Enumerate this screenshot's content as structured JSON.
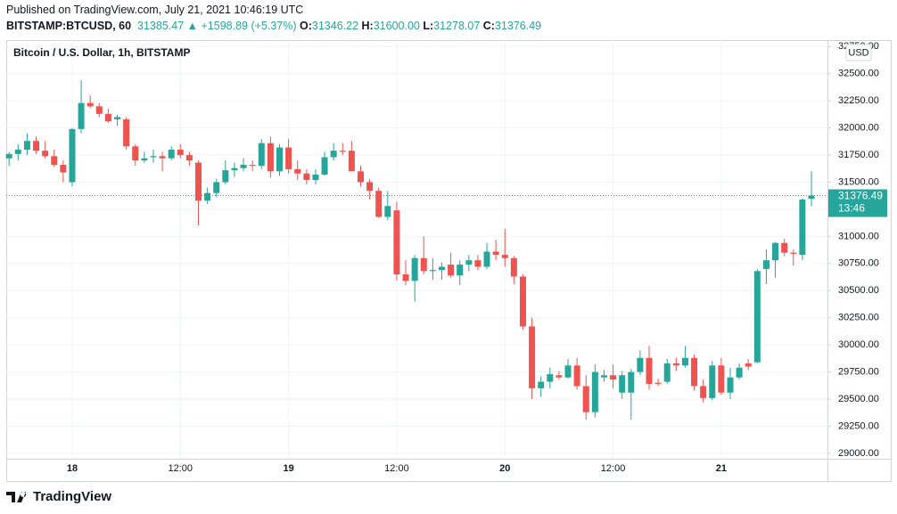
{
  "header": {
    "published": "Published on TradingView.com, July 21, 2021 10:46:19 UTC",
    "symbol": "BITSTAMP:BTCUSD, 60",
    "last": "31385.47",
    "change": "▲ +1598.89 (+5.37%)",
    "o": "O:",
    "o_value": "31346.22",
    "h": "H:",
    "h_value": "31600.00",
    "l": "L:",
    "l_value": "31278.07",
    "c": "C:",
    "c_value": "31376.49"
  },
  "footer": {
    "brand": "TradingView"
  },
  "chart_data": {
    "type": "candlestick",
    "title": "Bitcoin / U.S. Dollar, 1h, BITSTAMP",
    "currency": "USD",
    "countdown": "13:46",
    "up_color": "#26a69a",
    "down_color": "#ef5350",
    "grid": true,
    "categories": [
      null,
      null,
      null,
      null,
      null,
      null,
      null,
      "18",
      null,
      null,
      null,
      null,
      null,
      null,
      null,
      null,
      null,
      null,
      null,
      "12:00",
      null,
      null,
      null,
      null,
      null,
      null,
      null,
      null,
      null,
      null,
      null,
      "19",
      null,
      null,
      null,
      null,
      null,
      null,
      null,
      null,
      null,
      null,
      null,
      "12:00",
      null,
      null,
      null,
      null,
      null,
      null,
      null,
      null,
      null,
      null,
      null,
      "20",
      null,
      null,
      null,
      null,
      null,
      null,
      null,
      null,
      null,
      null,
      null,
      "12:00",
      null,
      null,
      null,
      null,
      null,
      null,
      null,
      null,
      null,
      null,
      null,
      "21",
      null,
      null,
      null,
      null,
      null,
      null,
      null,
      null,
      null,
      null
    ],
    "open": [
      31720,
      31760,
      31800,
      31880,
      31790,
      31740,
      31660,
      31500,
      31990,
      32230,
      32200,
      32130,
      32080,
      32080,
      31830,
      31700,
      31730,
      31740,
      31720,
      31800,
      31750,
      31680,
      31330,
      31400,
      31500,
      31610,
      31630,
      31660,
      31650,
      31860,
      31600,
      31820,
      31620,
      31580,
      31520,
      31570,
      31730,
      31790,
      31790,
      31600,
      31500,
      31420,
      31180,
      31240,
      30650,
      30590,
      30800,
      30680,
      30690,
      30740,
      30640,
      30740,
      30780,
      30720,
      30860,
      30830,
      30800,
      30630,
      30170,
      29600,
      29660,
      29720,
      29700,
      29810,
      29620,
      29380,
      29700,
      29720,
      29560,
      29560,
      29750,
      29880,
      29650,
      29660,
      29830,
      29810,
      29880,
      29620,
      29510,
      29810,
      29560,
      29700,
      29830,
      29840,
      30700,
      30780,
      30940,
      30850,
      30830,
      31346.22
    ],
    "high": [
      31780,
      31850,
      31950,
      31920,
      31880,
      31800,
      31700,
      32000,
      32440,
      32300,
      32230,
      32180,
      32120,
      32100,
      31850,
      31780,
      31800,
      31780,
      31830,
      31850,
      31780,
      31700,
      31450,
      31530,
      31700,
      31680,
      31720,
      31700,
      31900,
      31920,
      31850,
      31900,
      31700,
      31620,
      31620,
      31780,
      31860,
      31860,
      31880,
      31650,
      31530,
      31450,
      31420,
      31320,
      30780,
      30830,
      31000,
      30800,
      30760,
      30850,
      30780,
      30830,
      30830,
      30940,
      30970,
      31070,
      30820,
      30650,
      30250,
      29710,
      29790,
      29760,
      29870,
      29880,
      29720,
      29820,
      29770,
      29820,
      29760,
      29780,
      29950,
      29990,
      29690,
      29870,
      29880,
      29990,
      29910,
      29680,
      29850,
      29880,
      29790,
      29830,
      29870,
      30700,
      30880,
      30950,
      30980,
      30880,
      31350,
      31600
    ],
    "low": [
      31650,
      31700,
      31750,
      31760,
      31720,
      31640,
      31500,
      31460,
      31950,
      32180,
      32100,
      32050,
      32020,
      31800,
      31650,
      31680,
      31680,
      31600,
      31700,
      31720,
      31650,
      31100,
      31300,
      31360,
      31480,
      31550,
      31600,
      31600,
      31620,
      31540,
      31560,
      31580,
      31520,
      31480,
      31480,
      31560,
      31700,
      31750,
      31600,
      31460,
      31340,
      31170,
      31150,
      30590,
      30550,
      30400,
      30650,
      30600,
      30600,
      30620,
      30550,
      30680,
      30690,
      30700,
      30780,
      30720,
      30560,
      30140,
      29500,
      29520,
      29600,
      29680,
      29690,
      29590,
      29310,
      29330,
      29660,
      29600,
      29500,
      29310,
      29720,
      29590,
      29620,
      29640,
      29760,
      29790,
      29580,
      29470,
      29490,
      29540,
      29500,
      29680,
      29770,
      29830,
      30560,
      30620,
      30820,
      30730,
      30780,
      31278.07
    ],
    "close": [
      31760,
      31800,
      31880,
      31790,
      31740,
      31660,
      31590,
      31990,
      32230,
      32200,
      32130,
      32060,
      32100,
      31830,
      31700,
      31720,
      31740,
      31720,
      31800,
      31750,
      31700,
      31330,
      31400,
      31500,
      31610,
      31630,
      31660,
      31650,
      31860,
      31600,
      31820,
      31620,
      31580,
      31520,
      31570,
      31730,
      31790,
      31780,
      31600,
      31500,
      31420,
      31180,
      31280,
      30650,
      30590,
      30800,
      30680,
      30690,
      30720,
      30640,
      30740,
      30780,
      30720,
      30860,
      30830,
      30800,
      30630,
      30170,
      29600,
      29660,
      29730,
      29700,
      29810,
      29620,
      29380,
      29750,
      29720,
      29680,
      29720,
      29750,
      29880,
      29640,
      29640,
      29830,
      29810,
      29880,
      29620,
      29510,
      29810,
      29560,
      29700,
      29790,
      29800,
      30680,
      30780,
      30940,
      30850,
      30840,
      31340,
      31376.49
    ],
    "ylim": [
      28950,
      32810
    ],
    "yticks": [
      {
        "value": 29000,
        "label": "29000.00"
      },
      {
        "value": 29250,
        "label": "29250.00"
      },
      {
        "value": 29500,
        "label": "29500.00"
      },
      {
        "value": 29750,
        "label": "29750.00"
      },
      {
        "value": 30000,
        "label": "30000.00"
      },
      {
        "value": 30250,
        "label": "30250.00"
      },
      {
        "value": 30500,
        "label": "30500.00"
      },
      {
        "value": 30750,
        "label": "30750.00"
      },
      {
        "value": 31000,
        "label": "31000.00"
      },
      {
        "value": 31250,
        "label": "31250.00"
      },
      {
        "value": 31500,
        "label": "31500.00"
      },
      {
        "value": 31750,
        "label": "31750.00"
      },
      {
        "value": 32000,
        "label": "32000.00"
      },
      {
        "value": 32250,
        "label": "32250.00"
      },
      {
        "value": 32500,
        "label": "32500.00"
      },
      {
        "value": 32750,
        "label": "32750.00"
      }
    ]
  }
}
